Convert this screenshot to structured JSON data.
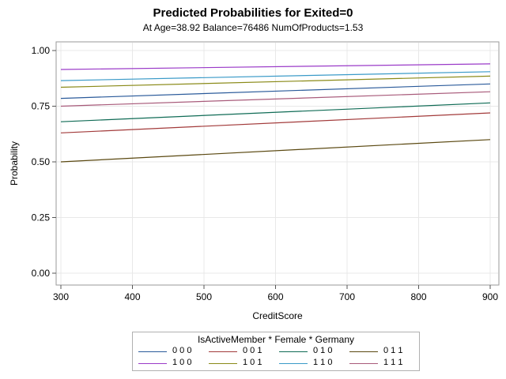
{
  "chart_data": {
    "type": "line",
    "title": "Predicted Probabilities for Exited=0",
    "subtitle": "At Age=38.92 Balance=76486 NumOfProducts=1.53",
    "xlabel": "CreditScore",
    "ylabel": "Probability",
    "xlim": [
      300,
      900
    ],
    "ylim": [
      0,
      1
    ],
    "xticks": [
      "300",
      "400",
      "500",
      "600",
      "700",
      "800",
      "900"
    ],
    "yticks": [
      "0.00",
      "0.25",
      "0.50",
      "0.75",
      "1.00"
    ],
    "grid": true,
    "legend_title": "IsActiveMember * Female * Germany",
    "legend_placement": "bottom",
    "series": [
      {
        "name": "0 0 0",
        "color": "#2a5a9a",
        "x": [
          300,
          900
        ],
        "y": [
          0.785,
          0.85
        ]
      },
      {
        "name": "0 0 1",
        "color": "#a23a3a",
        "x": [
          300,
          900
        ],
        "y": [
          0.63,
          0.72
        ]
      },
      {
        "name": "0 1 0",
        "color": "#0f6b55",
        "x": [
          300,
          900
        ],
        "y": [
          0.68,
          0.765
        ]
      },
      {
        "name": "0 1 1",
        "color": "#5a4810",
        "x": [
          300,
          900
        ],
        "y": [
          0.5,
          0.6
        ]
      },
      {
        "name": "1 0 0",
        "color": "#9a3ac8",
        "x": [
          300,
          900
        ],
        "y": [
          0.915,
          0.94
        ]
      },
      {
        "name": "1 0 1",
        "color": "#8a8a18",
        "x": [
          300,
          900
        ],
        "y": [
          0.835,
          0.885
        ]
      },
      {
        "name": "1 1 0",
        "color": "#3a9ac8",
        "x": [
          300,
          900
        ],
        "y": [
          0.865,
          0.905
        ]
      },
      {
        "name": "1 1 1",
        "color": "#a85a7a",
        "x": [
          300,
          900
        ],
        "y": [
          0.75,
          0.815
        ]
      }
    ]
  }
}
